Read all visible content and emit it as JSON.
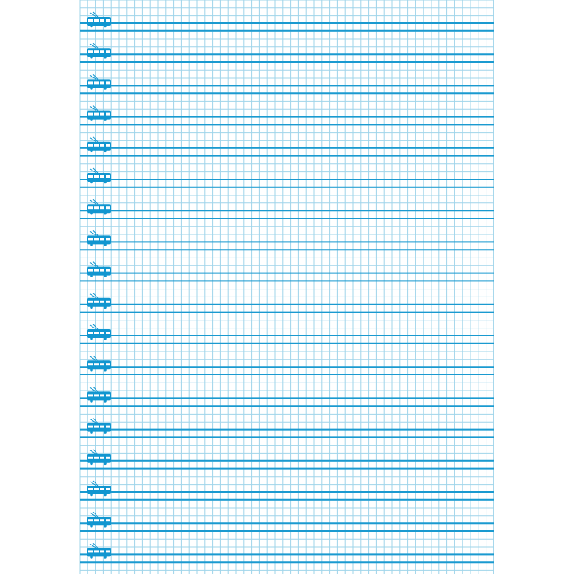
{
  "sheet": {
    "type": "graph-paper",
    "rows_with_icon": 18,
    "icon": "trolleybus-icon",
    "colors": {
      "thick_line": "#1a9ad0",
      "grid_line": "#9fd4ea",
      "icon": "#1196d0",
      "background": "#ffffff"
    }
  }
}
